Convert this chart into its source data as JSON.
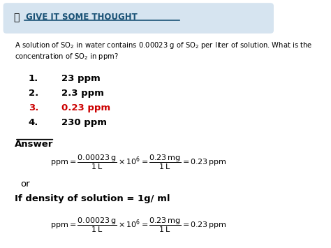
{
  "bg_color": "#ffffff",
  "header_bg": "#d6e4f0",
  "header_text": "GIVE IT SOME THOUGHT",
  "header_text_color": "#1a5276",
  "question_text": "A solution of SO$_2$ in water contains 0.00023 g of SO$_2$ per liter of solution. What is the\nconcentration of SO$_2$ in ppm?",
  "options": [
    {
      "num": "1.",
      "text": "23 ppm",
      "color": "#000000"
    },
    {
      "num": "2.",
      "text": "2.3 ppm",
      "color": "#000000"
    },
    {
      "num": "3.",
      "text": "0.23 ppm",
      "color": "#cc0000"
    },
    {
      "num": "4.",
      "text": "230 ppm",
      "color": "#000000"
    }
  ],
  "answer_label": "Answer",
  "formula_line": "$\\mathrm{ppm} = \\dfrac{0.00023\\,\\mathrm{g}}{1\\,\\mathrm{L}} \\times 10^{6} = \\dfrac{0.23\\,\\mathrm{mg}}{1\\,\\mathrm{L}} = 0.23\\,\\mathrm{ppm}$",
  "or_text": "or",
  "density_text": "If density of solution = 1g/ ml",
  "formula_line2": "$\\mathrm{ppm} = \\dfrac{0.00023\\,\\mathrm{g}}{1\\,\\mathrm{L}} \\times 10^{6} = \\dfrac{0.23\\,\\mathrm{mg}}{1\\,\\mathrm{L}} = 0.23\\,\\mathrm{ppm}$"
}
